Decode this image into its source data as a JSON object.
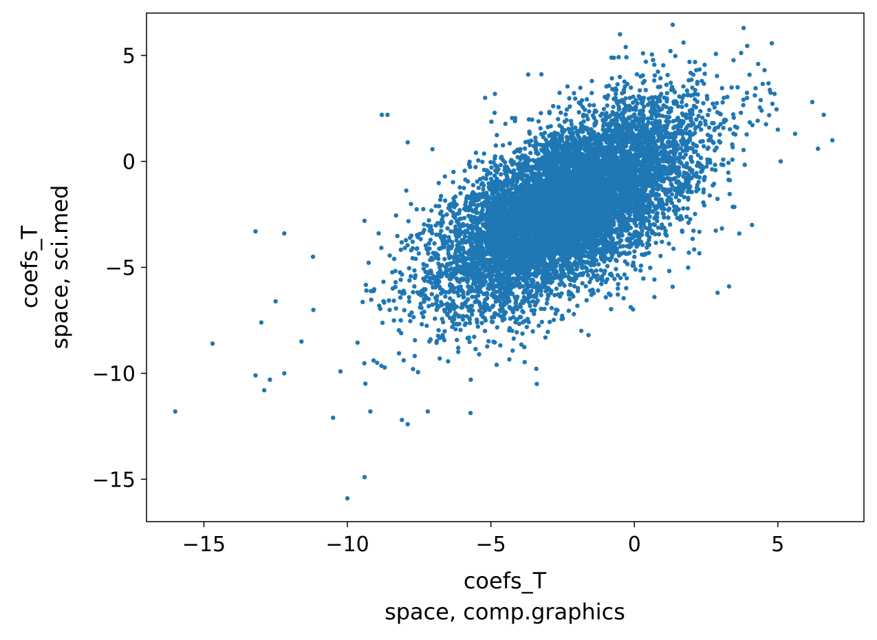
{
  "chart_data": {
    "type": "scatter",
    "title": "",
    "xlabel_lines": [
      "coefs_T",
      "space, comp.graphics"
    ],
    "ylabel_lines": [
      "coefs_T",
      "space, sci.med"
    ],
    "xlim": [
      -17,
      8
    ],
    "ylim": [
      -17,
      7
    ],
    "xticks": [
      -15,
      -10,
      -5,
      0,
      5
    ],
    "yticks": [
      -15,
      -10,
      -5,
      0,
      5
    ],
    "xtick_labels": [
      "−15",
      "−10",
      "−5",
      "0",
      "5"
    ],
    "ytick_labels": [
      "−15",
      "−10",
      "−5",
      "0",
      "5"
    ],
    "grid": false,
    "marker_color": "#1f77b4",
    "series": [
      {
        "points_summary": {
          "n": 9000,
          "center": [
            -2.3,
            -2.1
          ],
          "sd_x": 2.2,
          "sd_y": 2.3,
          "correlation": 0.62
        },
        "outliers": [
          [
            -16.0,
            -11.8
          ],
          [
            -14.7,
            -8.6
          ],
          [
            -13.2,
            -10.1
          ],
          [
            -12.9,
            -10.8
          ],
          [
            -12.7,
            -10.3
          ],
          [
            -12.2,
            -10.0
          ],
          [
            -10.0,
            -15.9
          ],
          [
            -9.4,
            -14.9
          ],
          [
            -10.5,
            -12.1
          ],
          [
            -9.2,
            -11.8
          ],
          [
            -7.9,
            -12.4
          ],
          [
            -7.2,
            -11.8
          ],
          [
            -8.1,
            -12.2
          ],
          [
            -13.2,
            -3.3
          ],
          [
            -12.2,
            -3.4
          ],
          [
            -8.8,
            2.2
          ],
          [
            -8.6,
            2.2
          ],
          [
            -7.9,
            0.9
          ],
          [
            -5.2,
            3.0
          ],
          [
            -0.5,
            6.0
          ],
          [
            -0.3,
            5.4
          ],
          [
            0.3,
            5.1
          ],
          [
            -0.8,
            4.9
          ],
          [
            -3.7,
            4.1
          ],
          [
            6.9,
            1.0
          ],
          [
            6.6,
            2.2
          ],
          [
            6.2,
            2.8
          ],
          [
            6.4,
            0.6
          ],
          [
            5.6,
            1.3
          ],
          [
            5.0,
            1.5
          ],
          [
            5.1,
            0.0
          ],
          [
            4.1,
            -3.0
          ],
          [
            3.3,
            -5.9
          ],
          [
            2.9,
            -6.2
          ],
          [
            0.7,
            -6.4
          ],
          [
            -1.6,
            -8.2
          ],
          [
            -3.4,
            -10.5
          ],
          [
            -4.8,
            -9.6
          ],
          [
            -5.7,
            -10.3
          ],
          [
            -7.1,
            -8.4
          ],
          [
            -13.0,
            -7.6
          ],
          [
            -12.5,
            -6.6
          ],
          [
            -11.6,
            -8.5
          ],
          [
            -11.2,
            -4.5
          ],
          [
            3.6,
            3.5
          ]
        ]
      }
    ]
  }
}
